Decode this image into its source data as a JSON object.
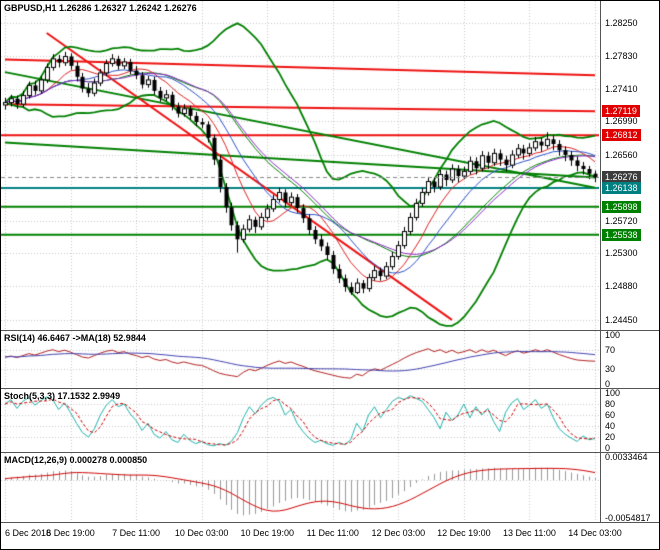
{
  "window": {
    "background": "#ffffff",
    "border": "#000000"
  },
  "time_axis": {
    "labels": [
      "6 Dec 2018",
      "6 Dec 19:00",
      "7 Dec 11:00",
      "10 Dec 03:00",
      "10 Dec 19:00",
      "11 Dec 11:00",
      "12 Dec 03:00",
      "12 Dec 19:00",
      "13 Dec 11:00",
      "14 Dec 03:00"
    ]
  },
  "price_axis": {
    "badges": [
      {
        "label": "1.27119",
        "price": 1.27119,
        "bg": "#e00000"
      },
      {
        "label": "1.26812",
        "price": 1.26812,
        "bg": "#e00000"
      },
      {
        "label": "1.26276",
        "price": 1.26276,
        "bg": "#3c3c3c"
      },
      {
        "label": "1.26138",
        "price": 1.26138,
        "bg": "#008080"
      },
      {
        "label": "1.25898",
        "price": 1.25898,
        "bg": "#008000"
      },
      {
        "label": "1.25538",
        "price": 1.25538,
        "bg": "#008000"
      }
    ]
  },
  "chart_data": [
    {
      "type": "candlestick",
      "name": "GBPUSD,H1",
      "title": "GBPUSD,H1  1.26286 1.26327 1.26242 1.26276",
      "ohlc_readout": {
        "open": "1.26286",
        "high": "1.26327",
        "low": "1.26242",
        "close": "1.26276"
      },
      "x_labels": [
        "6 Dec 2018",
        "6 Dec 19:00",
        "7 Dec 11:00",
        "10 Dec 03:00",
        "10 Dec 19:00",
        "11 Dec 11:00",
        "12 Dec 03:00",
        "12 Dec 19:00",
        "13 Dec 11:00",
        "14 Dec 03:00"
      ],
      "label_candle_indices": [
        0,
        11,
        22,
        33,
        44,
        55,
        66,
        77,
        88,
        99
      ],
      "ylim": [
        1.2432,
        1.2853
      ],
      "y_ticks": [
        "1.28250",
        "1.27830",
        "1.27410",
        "1.26990",
        "1.26560",
        "1.26140",
        "1.25720",
        "1.25300",
        "1.24880",
        "1.24450"
      ],
      "current_price": 1.26276,
      "moving_average_periods": [
        8,
        13,
        21
      ],
      "bollinger": {
        "period": 20,
        "deviation": 2
      },
      "red_trendlines": [
        {
          "from": [
            7,
            1.2812
          ],
          "to": [
            75,
            1.2445
          ]
        },
        {
          "from": [
            0,
            1.2778
          ],
          "to": [
            99,
            1.2758
          ]
        },
        {
          "from": [
            0,
            1.2721
          ],
          "to": [
            99,
            1.27119
          ]
        }
      ],
      "green_trendlines": [
        {
          "from": [
            0,
            1.2762
          ],
          "to": [
            99,
            1.2614
          ]
        },
        {
          "from": [
            0,
            1.2672
          ],
          "to": [
            99,
            1.2627
          ]
        }
      ],
      "horizontal_levels": [
        {
          "price": 1.26812,
          "color": "#ee1111"
        },
        {
          "price": 1.26138,
          "color": "#008080"
        },
        {
          "price": 1.25898,
          "color": "#008000"
        },
        {
          "price": 1.25538,
          "color": "#008000"
        }
      ],
      "candles": [
        [
          1.272,
          1.2729,
          1.2714,
          1.2723
        ],
        [
          1.2723,
          1.2733,
          1.2718,
          1.2728
        ],
        [
          1.2728,
          1.2732,
          1.2715,
          1.2721
        ],
        [
          1.2721,
          1.2738,
          1.2717,
          1.2732
        ],
        [
          1.2732,
          1.275,
          1.2728,
          1.2745
        ],
        [
          1.2745,
          1.2751,
          1.2733,
          1.2738
        ],
        [
          1.2738,
          1.2757,
          1.2734,
          1.2752
        ],
        [
          1.2752,
          1.2773,
          1.2748,
          1.2768
        ],
        [
          1.2768,
          1.2785,
          1.2764,
          1.2779
        ],
        [
          1.2779,
          1.2784,
          1.2768,
          1.2774
        ],
        [
          1.2774,
          1.2788,
          1.277,
          1.2782
        ],
        [
          1.2782,
          1.2786,
          1.2765,
          1.277
        ],
        [
          1.277,
          1.2775,
          1.275,
          1.2756
        ],
        [
          1.2756,
          1.2761,
          1.2736,
          1.2741
        ],
        [
          1.2741,
          1.2748,
          1.273,
          1.2735
        ],
        [
          1.2735,
          1.2754,
          1.2731,
          1.2748
        ],
        [
          1.2748,
          1.2766,
          1.2744,
          1.2761
        ],
        [
          1.2761,
          1.2778,
          1.2757,
          1.2773
        ],
        [
          1.2773,
          1.2785,
          1.2769,
          1.2779
        ],
        [
          1.2779,
          1.2783,
          1.2765,
          1.277
        ],
        [
          1.277,
          1.278,
          1.2766,
          1.2775
        ],
        [
          1.2775,
          1.2779,
          1.2759,
          1.2764
        ],
        [
          1.2764,
          1.277,
          1.2753,
          1.2758
        ],
        [
          1.2758,
          1.2762,
          1.2741,
          1.2746
        ],
        [
          1.2746,
          1.2757,
          1.2742,
          1.2752
        ],
        [
          1.2752,
          1.2756,
          1.2733,
          1.2738
        ],
        [
          1.2738,
          1.2743,
          1.2724,
          1.2729
        ],
        [
          1.2729,
          1.2739,
          1.2725,
          1.2733
        ],
        [
          1.2733,
          1.2737,
          1.2713,
          1.2718
        ],
        [
          1.2718,
          1.2723,
          1.2704,
          1.2709
        ],
        [
          1.2709,
          1.2721,
          1.2705,
          1.2715
        ],
        [
          1.2715,
          1.2719,
          1.2701,
          1.2706
        ],
        [
          1.2706,
          1.2711,
          1.2693,
          1.2698
        ],
        [
          1.2698,
          1.2703,
          1.269,
          1.2695
        ],
        [
          1.2695,
          1.2699,
          1.2672,
          1.2678
        ],
        [
          1.2678,
          1.2682,
          1.2643,
          1.265
        ],
        [
          1.265,
          1.2656,
          1.2608,
          1.2615
        ],
        [
          1.2615,
          1.262,
          1.2582,
          1.2589
        ],
        [
          1.2589,
          1.2595,
          1.2559,
          1.2566
        ],
        [
          1.2566,
          1.2571,
          1.2531,
          1.2548
        ],
        [
          1.2548,
          1.2567,
          1.2544,
          1.2561
        ],
        [
          1.2561,
          1.2579,
          1.2557,
          1.2573
        ],
        [
          1.2573,
          1.2577,
          1.2556,
          1.2564
        ],
        [
          1.2564,
          1.2582,
          1.256,
          1.2576
        ],
        [
          1.2576,
          1.2593,
          1.2572,
          1.2587
        ],
        [
          1.2587,
          1.2605,
          1.2583,
          1.2599
        ],
        [
          1.2599,
          1.2614,
          1.2595,
          1.2608
        ],
        [
          1.2608,
          1.2612,
          1.2589,
          1.2595
        ],
        [
          1.2595,
          1.2608,
          1.2591,
          1.2602
        ],
        [
          1.2602,
          1.2606,
          1.2582,
          1.2588
        ],
        [
          1.2588,
          1.2593,
          1.2569,
          1.2575
        ],
        [
          1.2575,
          1.258,
          1.2554,
          1.256
        ],
        [
          1.256,
          1.2565,
          1.2542,
          1.2548
        ],
        [
          1.2548,
          1.2554,
          1.2533,
          1.2539
        ],
        [
          1.2539,
          1.2544,
          1.2522,
          1.2528
        ],
        [
          1.2528,
          1.2533,
          1.2504,
          1.251
        ],
        [
          1.251,
          1.2516,
          1.2492,
          1.2498
        ],
        [
          1.2498,
          1.2503,
          1.2481,
          1.2487
        ],
        [
          1.2487,
          1.2493,
          1.2477,
          1.248
        ],
        [
          1.248,
          1.2498,
          1.2478,
          1.2492
        ],
        [
          1.2492,
          1.2496,
          1.2479,
          1.2485
        ],
        [
          1.2485,
          1.2504,
          1.2481,
          1.2499
        ],
        [
          1.2499,
          1.2514,
          1.2495,
          1.2508
        ],
        [
          1.2508,
          1.2512,
          1.2495,
          1.2501
        ],
        [
          1.2501,
          1.2519,
          1.2497,
          1.2513
        ],
        [
          1.2513,
          1.2532,
          1.2509,
          1.2526
        ],
        [
          1.2526,
          1.2546,
          1.2522,
          1.254
        ],
        [
          1.254,
          1.2564,
          1.2536,
          1.2558
        ],
        [
          1.2558,
          1.2582,
          1.2554,
          1.2576
        ],
        [
          1.2576,
          1.26,
          1.2572,
          1.2594
        ],
        [
          1.2594,
          1.2614,
          1.259,
          1.2608
        ],
        [
          1.2608,
          1.2628,
          1.2604,
          1.2622
        ],
        [
          1.2622,
          1.2627,
          1.2608,
          1.2615
        ],
        [
          1.2615,
          1.2637,
          1.2611,
          1.2631
        ],
        [
          1.2631,
          1.2636,
          1.2616,
          1.2624
        ],
        [
          1.2624,
          1.2644,
          1.262,
          1.2638
        ],
        [
          1.2638,
          1.2643,
          1.2621,
          1.2629
        ],
        [
          1.2629,
          1.2641,
          1.2625,
          1.2635
        ],
        [
          1.2635,
          1.2654,
          1.2631,
          1.2648
        ],
        [
          1.2648,
          1.2653,
          1.2631,
          1.2639
        ],
        [
          1.2639,
          1.2661,
          1.2635,
          1.2655
        ],
        [
          1.2655,
          1.266,
          1.2638,
          1.2646
        ],
        [
          1.2646,
          1.2664,
          1.2642,
          1.2658
        ],
        [
          1.2658,
          1.2663,
          1.2642,
          1.265
        ],
        [
          1.265,
          1.2655,
          1.2635,
          1.2643
        ],
        [
          1.2643,
          1.2662,
          1.2639,
          1.2656
        ],
        [
          1.2656,
          1.267,
          1.2652,
          1.2664
        ],
        [
          1.2664,
          1.2669,
          1.265,
          1.2658
        ],
        [
          1.2658,
          1.2671,
          1.2654,
          1.2665
        ],
        [
          1.2665,
          1.2679,
          1.2661,
          1.2673
        ],
        [
          1.2673,
          1.2678,
          1.266,
          1.2668
        ],
        [
          1.2668,
          1.2685,
          1.2664,
          1.2676
        ],
        [
          1.2676,
          1.2681,
          1.2662,
          1.267
        ],
        [
          1.267,
          1.2675,
          1.2655,
          1.2662
        ],
        [
          1.2662,
          1.2667,
          1.2648,
          1.2656
        ],
        [
          1.2656,
          1.2661,
          1.2642,
          1.2649
        ],
        [
          1.2649,
          1.2654,
          1.2635,
          1.2642
        ],
        [
          1.2642,
          1.2647,
          1.2631,
          1.2638
        ],
        [
          1.2638,
          1.2642,
          1.2625,
          1.2632
        ],
        [
          1.2632,
          1.2636,
          1.2621,
          1.26276
        ]
      ]
    },
    {
      "type": "line",
      "name": "RSI",
      "title": "RSI(14) 46.6467  ->MA(18) 52.9844",
      "ylim": [
        0,
        100
      ],
      "y_ticks": [
        "100",
        "70",
        "30",
        "0"
      ],
      "dotted_levels": [
        70,
        30
      ],
      "ma_period": 18,
      "values": [
        55,
        57,
        54,
        58,
        62,
        59,
        63,
        67,
        70,
        66,
        69,
        65,
        60,
        55,
        53,
        58,
        63,
        67,
        69,
        64,
        66,
        61,
        58,
        54,
        57,
        51,
        48,
        50,
        45,
        42,
        45,
        42,
        39,
        38,
        33,
        27,
        22,
        19,
        17,
        15,
        24,
        30,
        27,
        32,
        38,
        43,
        47,
        42,
        45,
        40,
        36,
        31,
        27,
        24,
        21,
        18,
        15,
        13,
        12,
        20,
        17,
        26,
        31,
        28,
        34,
        40,
        46,
        53,
        59,
        64,
        68,
        72,
        66,
        70,
        64,
        69,
        63,
        66,
        70,
        64,
        70,
        65,
        69,
        63,
        58,
        64,
        68,
        63,
        66,
        70,
        66,
        70,
        65,
        60,
        56,
        52,
        49,
        48,
        47,
        46.6
      ]
    },
    {
      "type": "line",
      "name": "Stochastic",
      "title": "Stoch(5,3,3) 17.1532 2.9949",
      "ylim": [
        0,
        100
      ],
      "y_ticks": [
        "100",
        "80",
        "60",
        "40",
        "20",
        "0"
      ],
      "dotted_levels": [
        80,
        60,
        40,
        20
      ],
      "d_period": 3,
      "k_values": [
        80,
        88,
        72,
        85,
        92,
        78,
        86,
        93,
        88,
        70,
        82,
        64,
        45,
        28,
        20,
        35,
        60,
        78,
        88,
        75,
        80,
        62,
        50,
        32,
        45,
        25,
        18,
        30,
        15,
        10,
        25,
        14,
        8,
        12,
        6,
        4,
        8,
        5,
        12,
        28,
        55,
        75,
        62,
        78,
        88,
        92,
        85,
        60,
        70,
        45,
        30,
        18,
        10,
        14,
        8,
        5,
        10,
        6,
        15,
        45,
        30,
        60,
        75,
        55,
        70,
        85,
        92,
        88,
        95,
        90,
        85,
        70,
        55,
        35,
        65,
        50,
        60,
        80,
        55,
        75,
        60,
        72,
        48,
        30,
        65,
        82,
        90,
        70,
        78,
        88,
        72,
        80,
        55,
        35,
        25,
        18,
        12,
        22,
        15,
        17.15
      ]
    },
    {
      "type": "macd",
      "name": "MACD",
      "title": "MACD(12,26,9) 0.000278 0.000850",
      "ylim": [
        -0.0054817,
        0.0033464
      ],
      "y_ticks": [
        "0.0033464",
        "-0.0054817"
      ],
      "dotted_levels": [
        0
      ],
      "signal_period": 9,
      "macd_values": [
        0.0002,
        0.0004,
        0.0005,
        0.0006,
        0.0008,
        0.0008,
        0.0009,
        0.0011,
        0.0013,
        0.0013,
        0.0014,
        0.0013,
        0.001,
        0.0007,
        0.0005,
        0.0005,
        0.0006,
        0.0008,
        0.0009,
        0.0009,
        0.0009,
        0.0008,
        0.0007,
        0.0005,
        0.0004,
        0.0002,
        0,
        -0.0001,
        -0.0003,
        -0.0005,
        -0.0005,
        -0.0007,
        -0.0009,
        -0.001,
        -0.0014,
        -0.002,
        -0.0028,
        -0.0036,
        -0.0043,
        -0.0049,
        -0.0051,
        -0.005,
        -0.0049,
        -0.0046,
        -0.0042,
        -0.0038,
        -0.0033,
        -0.003,
        -0.0027,
        -0.0026,
        -0.0027,
        -0.0029,
        -0.0031,
        -0.0034,
        -0.0037,
        -0.004,
        -0.0043,
        -0.0045,
        -0.0046,
        -0.0044,
        -0.0043,
        -0.004,
        -0.0036,
        -0.0033,
        -0.003,
        -0.0026,
        -0.0021,
        -0.0016,
        -0.001,
        -0.0004,
        0.0001,
        0.0006,
        0.0009,
        0.0012,
        0.0013,
        0.0014,
        0.0014,
        0.0015,
        0.0016,
        0.0016,
        0.0017,
        0.0017,
        0.0018,
        0.0017,
        0.0016,
        0.0016,
        0.0016,
        0.0017,
        0.0017,
        0.0018,
        0.0018,
        0.0018,
        0.0017,
        0.0015,
        0.0013,
        0.0011,
        0.0009,
        0.0007,
        0.0005,
        0.000278
      ]
    }
  ]
}
